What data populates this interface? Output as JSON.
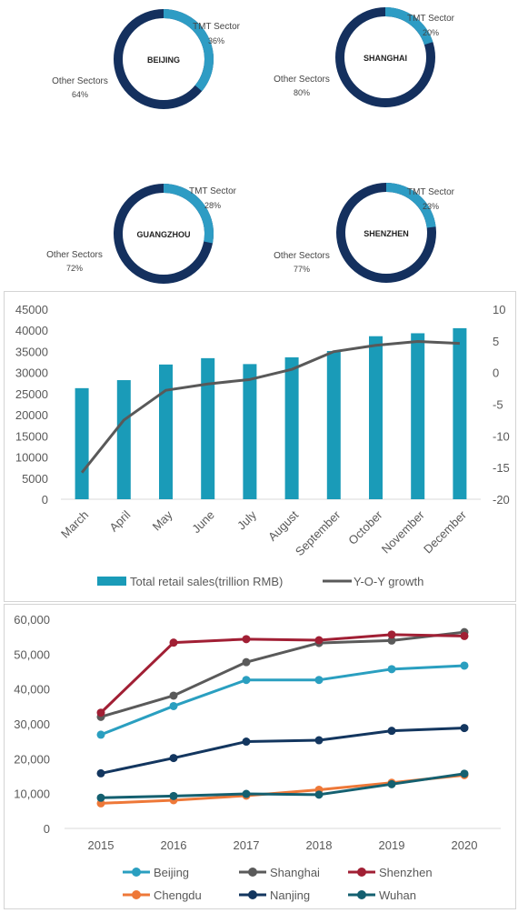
{
  "chart_data": [
    {
      "type": "pie",
      "center_label": "BEIJING",
      "slices": [
        {
          "label": "TMT Sector",
          "value": 36,
          "display": "36%",
          "color": "#2e9cc4"
        },
        {
          "label": "Other Sectors",
          "value": 64,
          "display": "64%",
          "color": "#14305e"
        }
      ]
    },
    {
      "type": "pie",
      "center_label": "SHANGHAI",
      "slices": [
        {
          "label": "TMT Sector",
          "value": 20,
          "display": "20%",
          "color": "#2e9cc4"
        },
        {
          "label": "Other Sectors",
          "value": 80,
          "display": "80%",
          "color": "#14305e"
        }
      ]
    },
    {
      "type": "pie",
      "center_label": "GUANGZHOU",
      "slices": [
        {
          "label": "TMT Sector",
          "value": 28,
          "display": "28%",
          "color": "#2e9cc4"
        },
        {
          "label": "Other Sectors",
          "value": 72,
          "display": "72%",
          "color": "#14305e"
        }
      ]
    },
    {
      "type": "pie",
      "center_label": "SHENZHEN",
      "slices": [
        {
          "label": "TMT Sector",
          "value": 23,
          "display": "23%",
          "color": "#2e9cc4"
        },
        {
          "label": "Other Sectors",
          "value": 77,
          "display": "77%",
          "color": "#14305e"
        }
      ]
    },
    {
      "type": "bar",
      "categories": [
        "March",
        "April",
        "May",
        "June",
        "July",
        "August",
        "September",
        "October",
        "November",
        "December"
      ],
      "series": [
        {
          "name": "Total retail sales(trillion RMB)",
          "type": "bar",
          "axis": "left",
          "color": "#1a9bb8",
          "values": [
            26300,
            28200,
            31900,
            33400,
            32000,
            33600,
            35100,
            38600,
            39300,
            40500
          ]
        },
        {
          "name": "Y-O-Y growth",
          "type": "line",
          "axis": "right",
          "color": "#595959",
          "values": [
            -15.8,
            -7.5,
            -2.8,
            -1.8,
            -1.1,
            0.5,
            3.3,
            4.3,
            4.9,
            4.6
          ]
        }
      ],
      "ylim": [
        0,
        45000
      ],
      "yticks": [
        "0",
        "5000",
        "10000",
        "15000",
        "20000",
        "25000",
        "30000",
        "35000",
        "40000",
        "45000"
      ],
      "y2lim": [
        -20,
        10
      ],
      "y2ticks": [
        "-20",
        "-15",
        "-10",
        "-5",
        "0",
        "5",
        "10"
      ],
      "legend": "bottom",
      "grid": false
    },
    {
      "type": "line",
      "x": [
        "2015",
        "2016",
        "2017",
        "2018",
        "2019",
        "2020"
      ],
      "series": [
        {
          "name": "Beijing",
          "color": "#2a9fc0",
          "values": [
            26900,
            35100,
            42600,
            42600,
            45700,
            46700
          ]
        },
        {
          "name": "Shanghai",
          "color": "#5a5a5a",
          "values": [
            32000,
            38100,
            47700,
            53200,
            53900,
            56300
          ]
        },
        {
          "name": "Shenzhen",
          "color": "#a11f34",
          "values": [
            33200,
            53300,
            54300,
            54000,
            55600,
            55200
          ]
        },
        {
          "name": "Chengdu",
          "color": "#ee7838",
          "values": [
            7200,
            8100,
            9400,
            11100,
            13100,
            15300
          ]
        },
        {
          "name": "Nanjing",
          "color": "#13365f",
          "values": [
            15800,
            20200,
            24900,
            25300,
            28000,
            28800
          ]
        },
        {
          "name": "Wuhan",
          "color": "#146070",
          "values": [
            8800,
            9300,
            9900,
            9700,
            12700,
            15700
          ]
        }
      ],
      "ylim": [
        0,
        60000
      ],
      "yticks": [
        "0",
        "10,000",
        "20,000",
        "30,000",
        "40,000",
        "50,000",
        "60,000"
      ],
      "legend": "bottom",
      "grid": false
    }
  ]
}
